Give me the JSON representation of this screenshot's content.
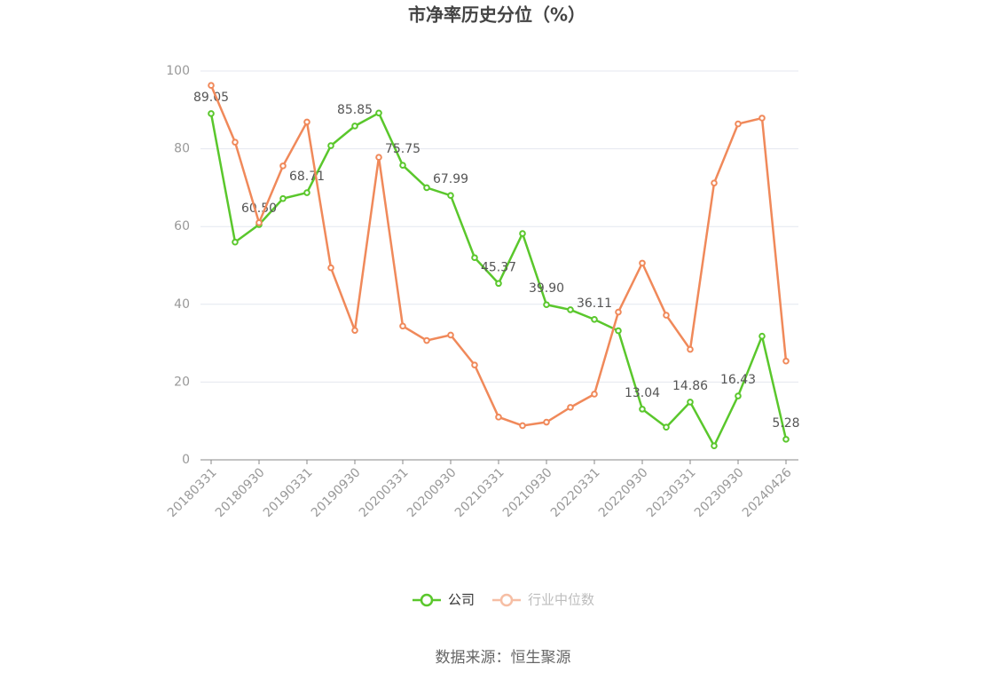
{
  "chart_data": {
    "type": "line",
    "title": "市净率历史分位（%）",
    "source": "数据来源：恒生聚源",
    "categories": [
      "20180331",
      null,
      "20180930",
      null,
      "20190331",
      null,
      "20190930",
      null,
      "20200331",
      null,
      "20200930",
      null,
      "20210331",
      null,
      "20210930",
      null,
      "20220331",
      null,
      "20220930",
      null,
      "20230331",
      null,
      "20230930",
      null,
      "20240426"
    ],
    "series": [
      {
        "name": "公司",
        "color": "#5ac72c",
        "values": [
          89.05,
          56.0,
          60.5,
          67.2,
          68.71,
          80.8,
          85.85,
          89.2,
          75.75,
          70.0,
          67.99,
          52.0,
          45.37,
          58.2,
          39.9,
          38.6,
          36.11,
          33.2,
          13.04,
          8.4,
          14.86,
          3.6,
          16.43,
          31.8,
          5.28
        ],
        "value_labels": [
          "89.05",
          null,
          "60.50",
          null,
          "68.71",
          null,
          "85.85",
          null,
          "75.75",
          null,
          "67.99",
          null,
          "45.37",
          null,
          "39.90",
          null,
          "36.11",
          null,
          "13.04",
          null,
          "14.86",
          null,
          "16.43",
          null,
          "5.28"
        ]
      },
      {
        "name": "行业中位数",
        "color": "#f0895a",
        "values": [
          96.3,
          81.7,
          61.0,
          75.6,
          86.9,
          49.4,
          33.3,
          77.8,
          34.4,
          30.7,
          32.1,
          24.4,
          11.0,
          8.8,
          9.7,
          13.5,
          16.9,
          38.0,
          50.6,
          37.2,
          28.4,
          71.2,
          86.4,
          87.9,
          25.4
        ]
      }
    ],
    "ylim": [
      0,
      100
    ],
    "yticks": [
      0,
      20,
      40,
      60,
      80,
      100
    ],
    "grid": true,
    "legend": "bottom"
  }
}
